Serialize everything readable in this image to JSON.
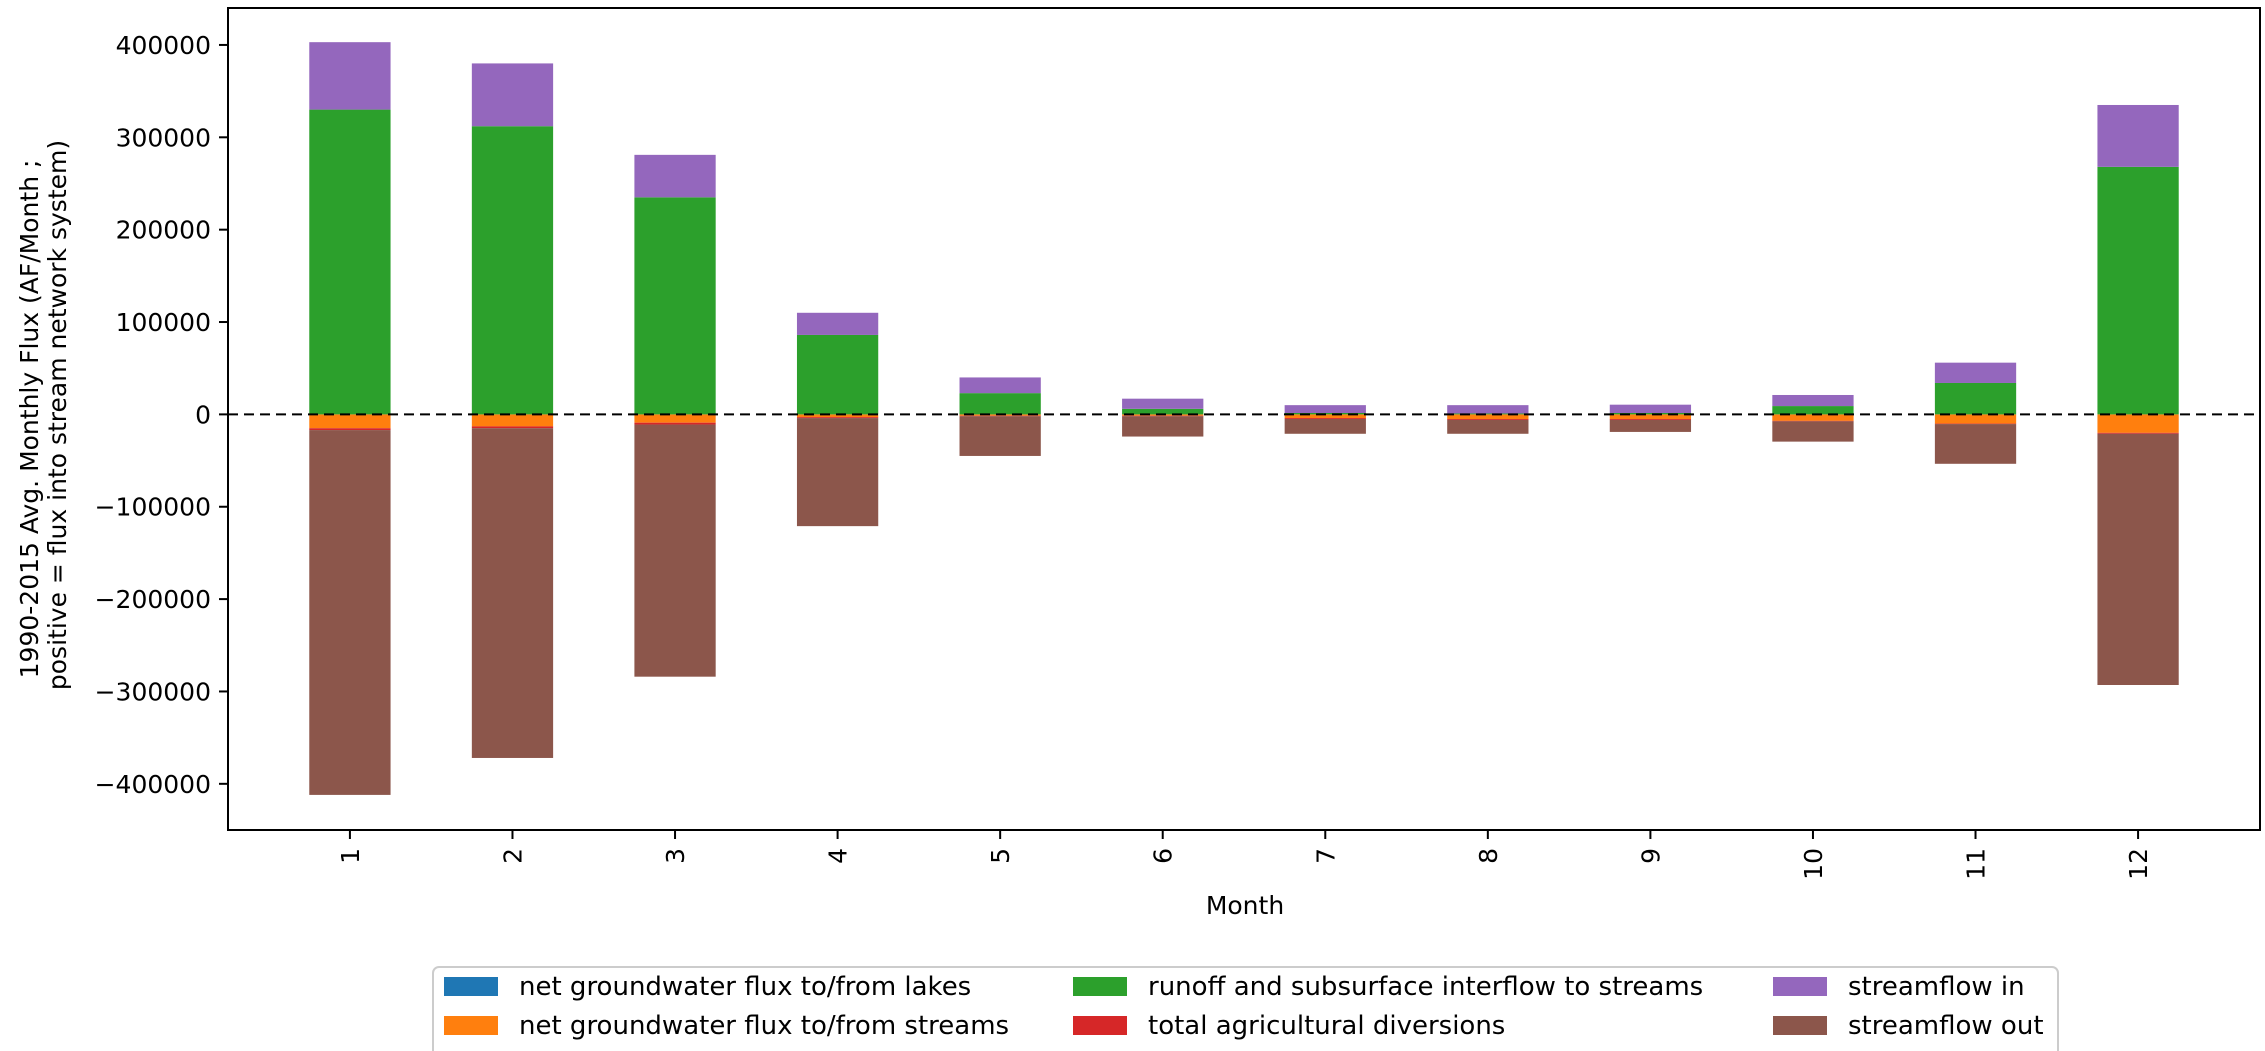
{
  "chart_data": {
    "type": "bar",
    "stacked": true,
    "title": "",
    "xlabel": "Month",
    "ylabel_lines": [
      "1990-2015 Avg. Monthly Flux (AF/Month ;",
      "positive = flux into stream network system)"
    ],
    "categories": [
      "1",
      "2",
      "3",
      "4",
      "5",
      "6",
      "7",
      "8",
      "9",
      "10",
      "11",
      "12"
    ],
    "ylim": [
      -450000,
      440000
    ],
    "yticks": [
      400000,
      300000,
      200000,
      100000,
      0,
      -100000,
      -200000,
      -300000,
      -400000
    ],
    "ytick_labels": [
      "400000",
      "300000",
      "200000",
      "100000",
      "0",
      "−100000",
      "−200000",
      "−300000",
      "−400000"
    ],
    "zero_line": "dashed",
    "grid": false,
    "legend_position": "bottom-center",
    "series": [
      {
        "name": "net groundwater flux to/from lakes",
        "color": "#1f77b4",
        "values": [
          0,
          0,
          0,
          0,
          0,
          0,
          0,
          0,
          0,
          0,
          0,
          0
        ]
      },
      {
        "name": "net groundwater flux to/from streams",
        "color": "#ff7f0e",
        "values": [
          -15000,
          -13000,
          -9000,
          -3000,
          -1500,
          -1500,
          -4000,
          -5000,
          -5000,
          -7000,
          -10000,
          -20000
        ]
      },
      {
        "name": "runoff and subsurface interflow to streams",
        "color": "#2ca02c",
        "values": [
          330000,
          312000,
          235000,
          86000,
          23000,
          6000,
          1500,
          1000,
          1500,
          9000,
          34000,
          268000
        ]
      },
      {
        "name": "total agricultural diversions",
        "color": "#d62728",
        "values": [
          -2000,
          -2000,
          -2000,
          -1000,
          -500,
          -500,
          -1000,
          -1000,
          -1000,
          -500,
          -500,
          -1000
        ]
      },
      {
        "name": "streamflow in",
        "color": "#9467bd",
        "values": [
          73000,
          68000,
          46000,
          24000,
          17000,
          11000,
          8500,
          9000,
          9000,
          12000,
          22000,
          67000
        ]
      },
      {
        "name": "streamflow out",
        "color": "#8c564b",
        "values": [
          -395000,
          -357000,
          -273000,
          -117000,
          -43000,
          -22000,
          -16000,
          -15000,
          -13000,
          -22000,
          -43000,
          -272000
        ]
      }
    ]
  }
}
